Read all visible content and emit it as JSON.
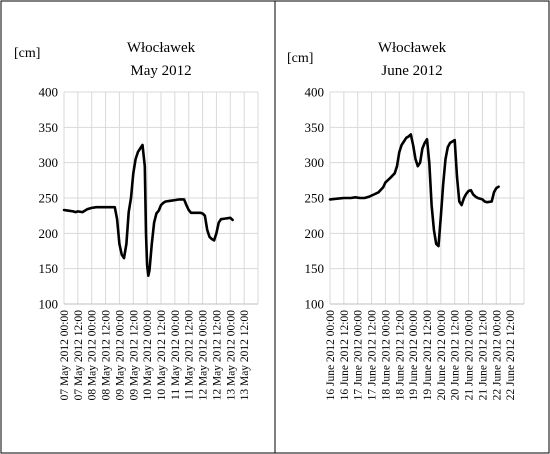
{
  "chart_data": [
    {
      "type": "line",
      "title": "Włocławek",
      "subtitle": "May 2012",
      "ylabel": "[cm]",
      "xlabel": "",
      "ylim": [
        100,
        400
      ],
      "yticks": [
        100,
        150,
        200,
        250,
        300,
        350,
        400
      ],
      "x_range_hours": [
        0,
        168
      ],
      "xtick_labels": [
        "07 May 2012 00:00",
        "07 May 2012 12:00",
        "08 May 2012 00:00",
        "08 May 2012 12:00",
        "09 May 2012 00:00",
        "09 May 2012 12:00",
        "10 May 2012 00:00",
        "10 May 2012 12:00",
        "11 May 2012 00:00",
        "11 May 2012 12:00",
        "12 May 2012 00:00",
        "12 May 2012 12:00",
        "13 May 2012 00:00",
        "13 May 2012 12:00"
      ],
      "grid": true,
      "legend": "none",
      "series": [
        {
          "color": "#000000",
          "points": [
            [
              0,
              233
            ],
            [
              4,
              232
            ],
            [
              8,
              231
            ],
            [
              10,
              230
            ],
            [
              12,
              231
            ],
            [
              16,
              230
            ],
            [
              20,
              234
            ],
            [
              24,
              236
            ],
            [
              28,
              237
            ],
            [
              32,
              237
            ],
            [
              36,
              237
            ],
            [
              40,
              237
            ],
            [
              44,
              237
            ],
            [
              46,
              220
            ],
            [
              48,
              185
            ],
            [
              50,
              170
            ],
            [
              52,
              165
            ],
            [
              54,
              185
            ],
            [
              56,
              230
            ],
            [
              58,
              250
            ],
            [
              60,
              285
            ],
            [
              62,
              305
            ],
            [
              64,
              315
            ],
            [
              66,
              320
            ],
            [
              68,
              325
            ],
            [
              70,
              295
            ],
            [
              71,
              200
            ],
            [
              72,
              155
            ],
            [
              73,
              140
            ],
            [
              74,
              148
            ],
            [
              76,
              185
            ],
            [
              78,
              215
            ],
            [
              80,
              228
            ],
            [
              82,
              232
            ],
            [
              84,
              240
            ],
            [
              86,
              243
            ],
            [
              88,
              245
            ],
            [
              92,
              246
            ],
            [
              96,
              247
            ],
            [
              100,
              248
            ],
            [
              104,
              248
            ],
            [
              106,
              240
            ],
            [
              108,
              233
            ],
            [
              110,
              229
            ],
            [
              114,
              229
            ],
            [
              118,
              229
            ],
            [
              120,
              228
            ],
            [
              122,
              225
            ],
            [
              124,
              205
            ],
            [
              126,
              195
            ],
            [
              128,
              192
            ],
            [
              130,
              190
            ],
            [
              132,
              200
            ],
            [
              134,
              215
            ],
            [
              136,
              220
            ],
            [
              140,
              221
            ],
            [
              144,
              222
            ],
            [
              146,
              219
            ]
          ]
        }
      ]
    },
    {
      "type": "line",
      "title": "Włocławek",
      "subtitle": "June 2012",
      "ylabel": "[cm]",
      "xlabel": "",
      "ylim": [
        100,
        400
      ],
      "yticks": [
        100,
        150,
        200,
        250,
        300,
        350,
        400
      ],
      "x_range_hours": [
        0,
        168
      ],
      "xtick_labels": [
        "16 June 2012 00:00",
        "16 June 2012 12:00",
        "17 June 2012 00:00",
        "17 June 2012 12:00",
        "18 June 2012 00:00",
        "18 June 2012 12:00",
        "19 June 2012 00:00",
        "19 June 2012 12:00",
        "20 June 2012 00:00",
        "20 June 2012 12:00",
        "21 June 2012 00:00",
        "21 June 2012 12:00",
        "22 June 2012 00:00",
        "22 June 2012 12:00"
      ],
      "grid": true,
      "legend": "none",
      "series": [
        {
          "color": "#000000",
          "points": [
            [
              0,
              248
            ],
            [
              6,
              249
            ],
            [
              12,
              250
            ],
            [
              18,
              250
            ],
            [
              22,
              251
            ],
            [
              26,
              250
            ],
            [
              30,
              250
            ],
            [
              34,
              252
            ],
            [
              38,
              255
            ],
            [
              42,
              258
            ],
            [
              46,
              265
            ],
            [
              48,
              272
            ],
            [
              52,
              278
            ],
            [
              56,
              285
            ],
            [
              58,
              295
            ],
            [
              60,
              315
            ],
            [
              62,
              325
            ],
            [
              64,
              330
            ],
            [
              66,
              335
            ],
            [
              68,
              337
            ],
            [
              70,
              340
            ],
            [
              72,
              325
            ],
            [
              74,
              305
            ],
            [
              76,
              295
            ],
            [
              78,
              300
            ],
            [
              80,
              320
            ],
            [
              82,
              328
            ],
            [
              84,
              333
            ],
            [
              86,
              300
            ],
            [
              88,
              240
            ],
            [
              90,
              205
            ],
            [
              92,
              185
            ],
            [
              94,
              182
            ],
            [
              96,
              225
            ],
            [
              98,
              270
            ],
            [
              100,
              305
            ],
            [
              102,
              322
            ],
            [
              104,
              328
            ],
            [
              106,
              330
            ],
            [
              108,
              332
            ],
            [
              110,
              280
            ],
            [
              112,
              245
            ],
            [
              114,
              240
            ],
            [
              116,
              250
            ],
            [
              118,
              256
            ],
            [
              120,
              260
            ],
            [
              122,
              261
            ],
            [
              124,
              255
            ],
            [
              126,
              252
            ],
            [
              128,
              250
            ],
            [
              132,
              248
            ],
            [
              134,
              245
            ],
            [
              136,
              244
            ],
            [
              140,
              245
            ],
            [
              142,
              258
            ],
            [
              144,
              264
            ],
            [
              146,
              266
            ]
          ]
        }
      ]
    }
  ]
}
